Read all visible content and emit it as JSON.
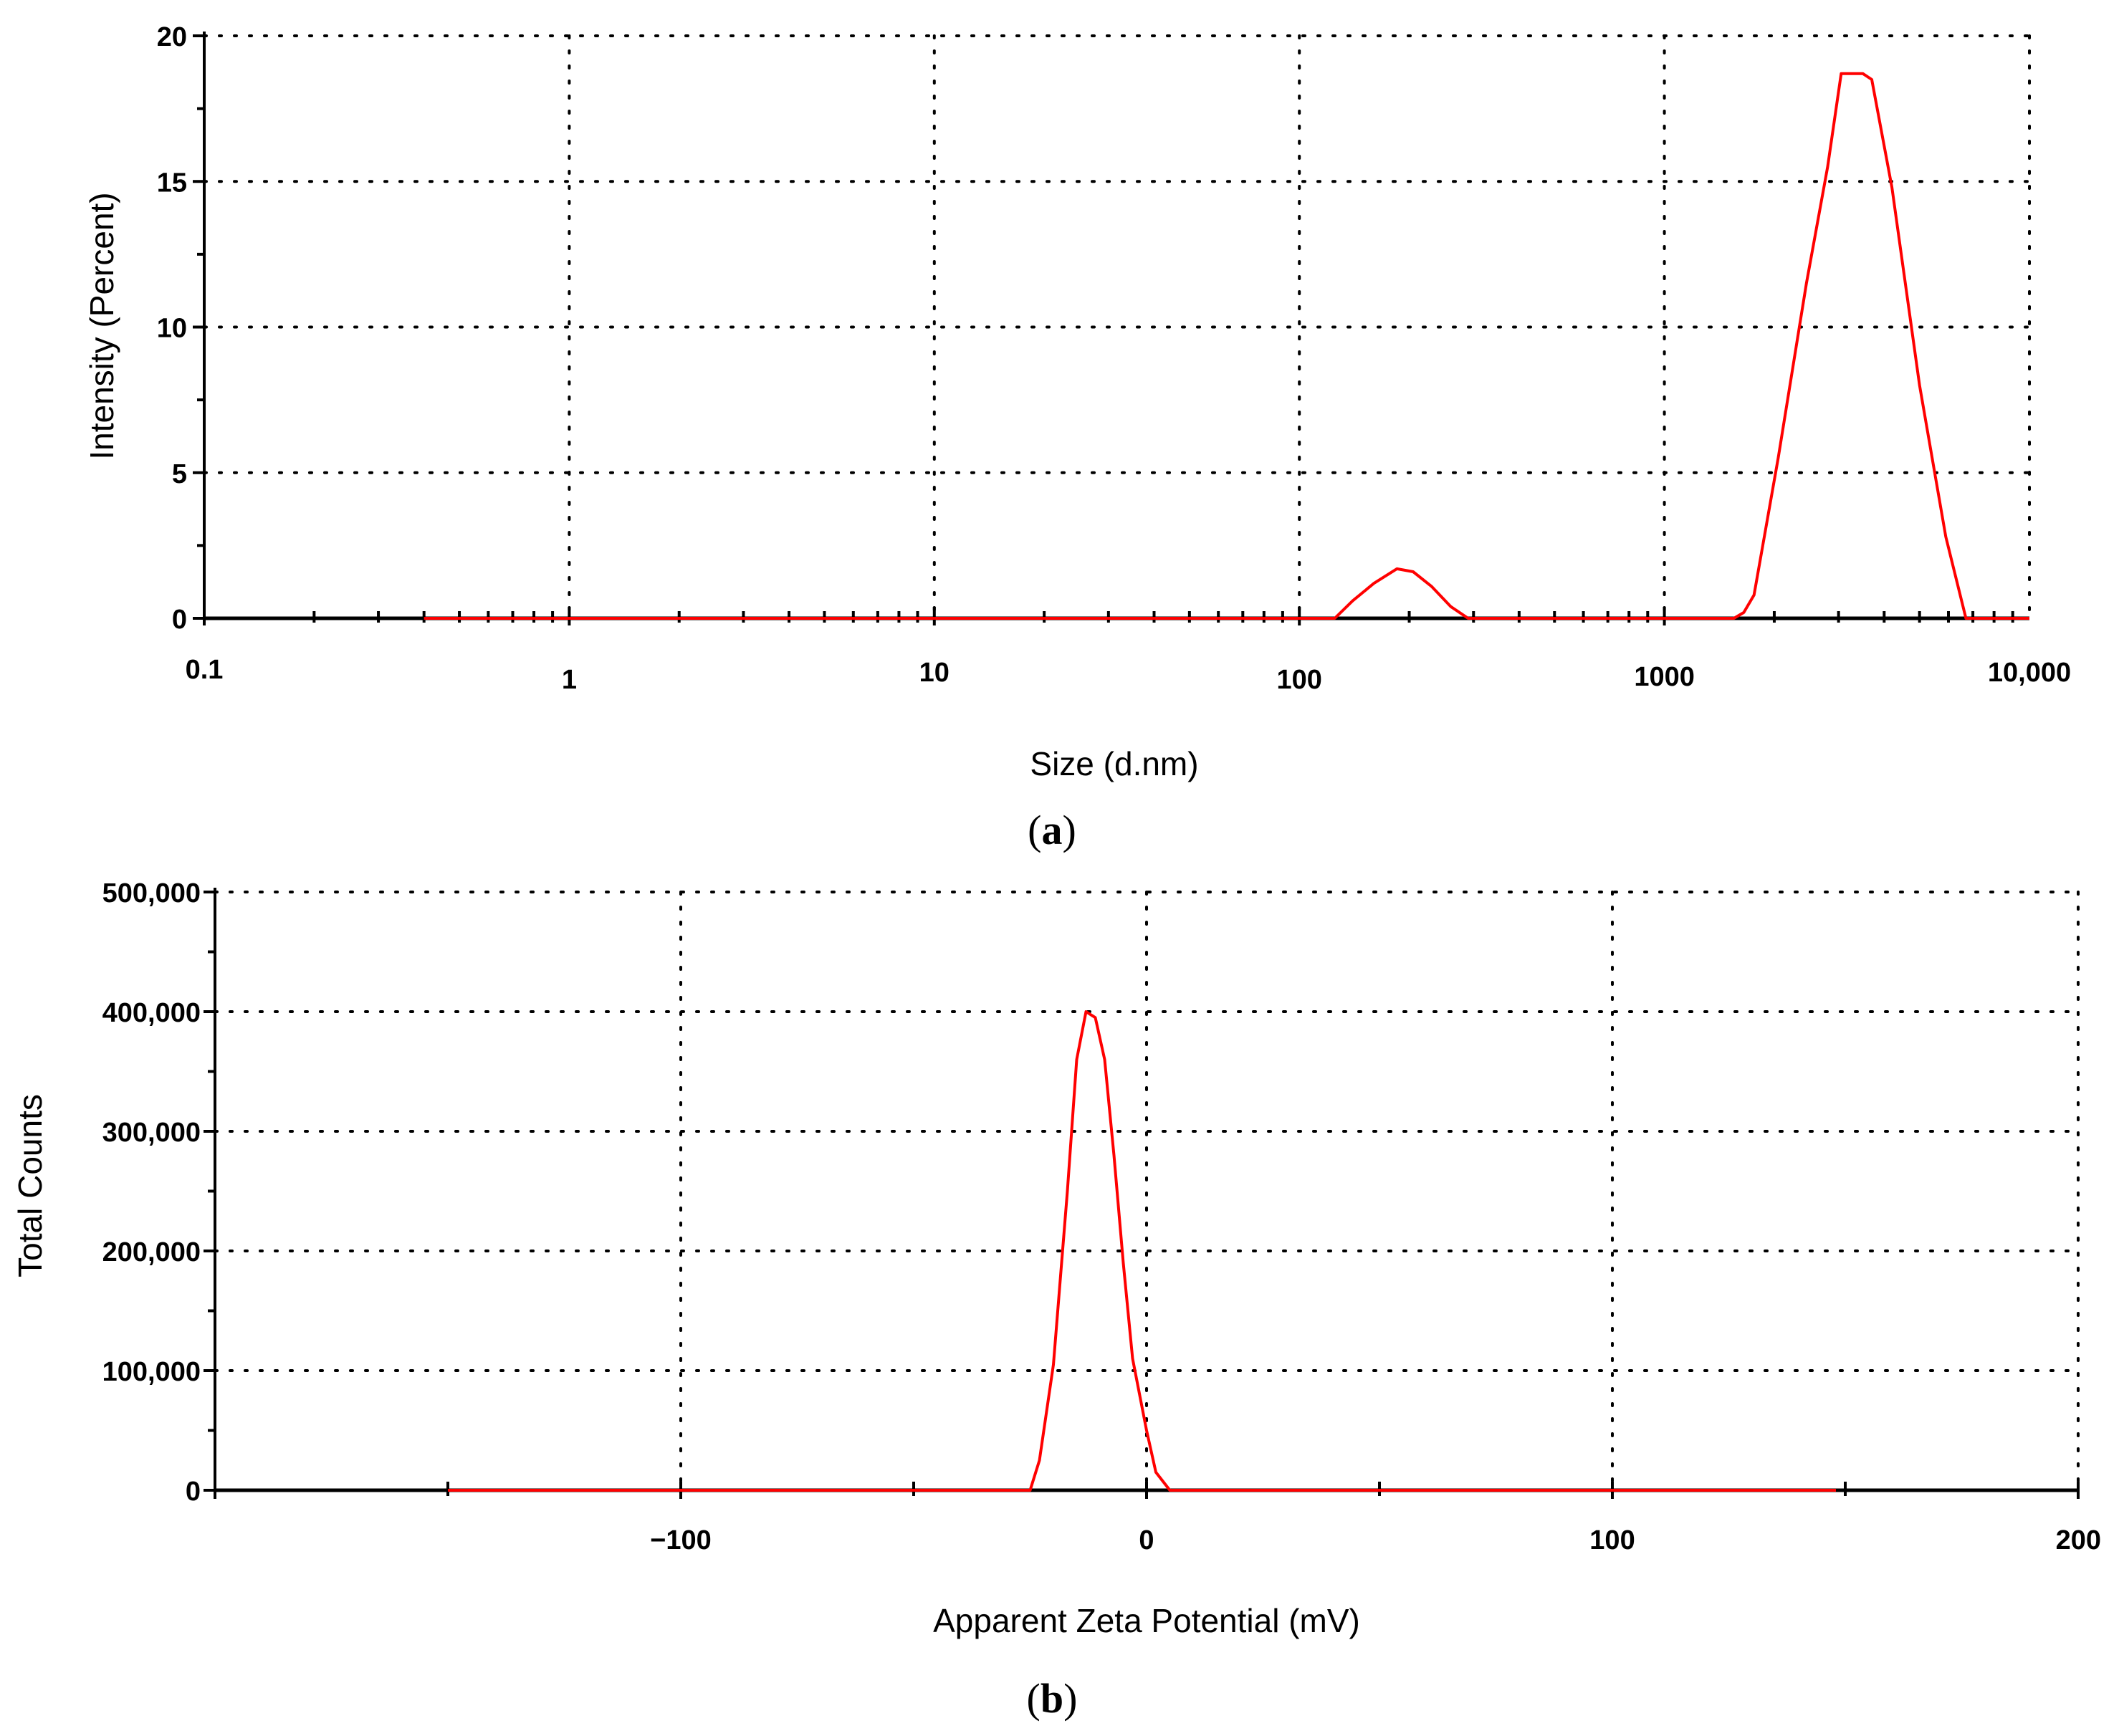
{
  "panels": [
    {
      "id": "a",
      "label_prefix": "(",
      "label_letter": "a",
      "label_suffix": ")",
      "chart_data": {
        "type": "line",
        "xscale": "log",
        "xlim": [
          0.1,
          10000
        ],
        "ylim": [
          0,
          20
        ],
        "xlabel": "Size (d.nm)",
        "ylabel": "Intensity (Percent)",
        "xticks": [
          0.1,
          1,
          10,
          100,
          1000,
          10000
        ],
        "xtick_labels": [
          "0.1",
          "1",
          "10",
          "100",
          "1000",
          "10,000"
        ],
        "yticks": [
          0,
          5,
          10,
          15,
          20
        ],
        "ytick_labels": [
          "0",
          "5",
          "10",
          "15",
          "20"
        ],
        "grid": true,
        "line_color": "#ff0000",
        "series": [
          {
            "x": [
              0.4,
              125,
              140,
              160,
              185,
              205,
              230,
              260,
              290,
              1550,
              1650,
              1760,
              2050,
              2450,
              2800,
              3050,
              3500,
              3700,
              4200,
              5000,
              5900,
              6700,
              10000
            ],
            "y": [
              0,
              0,
              0.6,
              1.2,
              1.7,
              1.6,
              1.1,
              0.4,
              0,
              0,
              0.2,
              0.8,
              5.5,
              11.5,
              15.5,
              18.7,
              18.7,
              18.5,
              14.8,
              8.0,
              2.8,
              0,
              0
            ]
          }
        ]
      }
    },
    {
      "id": "b",
      "label_prefix": "(",
      "label_letter": "b",
      "label_suffix": ")",
      "chart_data": {
        "type": "line",
        "xlim": [
          -200,
          200
        ],
        "ylim": [
          0,
          500000
        ],
        "xlabel": "Apparent Zeta Potential (mV)",
        "ylabel": "Total Counts",
        "xticks": [
          -100,
          0,
          100,
          200
        ],
        "xtick_labels": [
          "−100",
          "0",
          "100",
          "200"
        ],
        "yticks": [
          0,
          100000,
          200000,
          300000,
          400000,
          500000
        ],
        "ytick_labels": [
          "0",
          "100,000",
          "200,000",
          "300,000",
          "400,000",
          "500,000"
        ],
        "grid": true,
        "line_color": "#ff0000",
        "series": [
          {
            "x": [
              -150,
              -25,
              -23,
              -20,
              -17,
              -15,
              -13,
              -11,
              -9,
              -7,
              -5,
              -3,
              0,
              2,
              5,
              148
            ],
            "y": [
              0,
              0,
              25000,
              105000,
              250000,
              360000,
              400000,
              395000,
              360000,
              280000,
              190000,
              110000,
              50000,
              15000,
              0,
              0
            ]
          }
        ]
      }
    }
  ]
}
